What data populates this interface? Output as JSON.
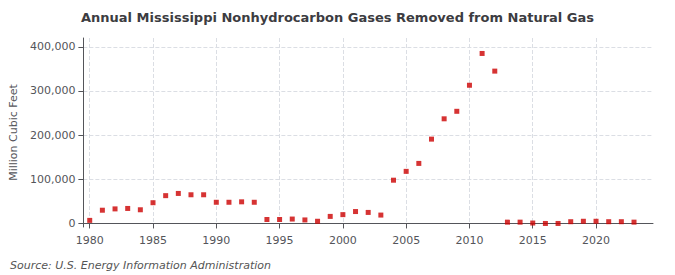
{
  "chart_data": {
    "type": "scatter",
    "title": "Annual Mississippi Nonhydrocarbon Gases Removed from Natural Gas",
    "ylabel": "Million Cubic Feet",
    "annotations": [
      "Source: U.S. Energy Information Administration"
    ],
    "color": "#cc0000",
    "marker": "square",
    "grid": true,
    "x": [
      1980,
      1981,
      1982,
      1983,
      1984,
      1985,
      1986,
      1987,
      1988,
      1989,
      1990,
      1991,
      1992,
      1993,
      1994,
      1995,
      1996,
      1997,
      1998,
      1999,
      2000,
      2001,
      2002,
      2003,
      2004,
      2005,
      2006,
      2007,
      2008,
      2009,
      2010,
      2011,
      2012,
      2013,
      2014,
      2015,
      2016,
      2017,
      2018,
      2019,
      2020,
      2021,
      2022,
      2023
    ],
    "values": [
      7000,
      30000,
      33000,
      34000,
      31000,
      47000,
      63000,
      68000,
      65000,
      65000,
      48000,
      48000,
      49000,
      48000,
      9000,
      9000,
      10000,
      8000,
      5000,
      16000,
      20000,
      27000,
      25000,
      19000,
      98000,
      118000,
      136000,
      191000,
      237000,
      254000,
      313000,
      385000,
      345000,
      3000,
      3000,
      1000,
      0,
      0,
      4000,
      5000,
      5000,
      4000,
      4000,
      3000
    ],
    "xlim": [
      1979.5,
      2024.5
    ],
    "xticks": [
      1980,
      1985,
      1990,
      1995,
      2000,
      2005,
      2010,
      2015,
      2020
    ],
    "ylim": [
      -8000,
      420000
    ],
    "yticks": [
      0,
      {
        "value": 100000,
        "label": "100,000"
      },
      {
        "value": 200000,
        "label": "200,000"
      },
      {
        "value": 300000,
        "label": "300,000"
      },
      {
        "value": 400000,
        "label": "400,000"
      }
    ]
  }
}
